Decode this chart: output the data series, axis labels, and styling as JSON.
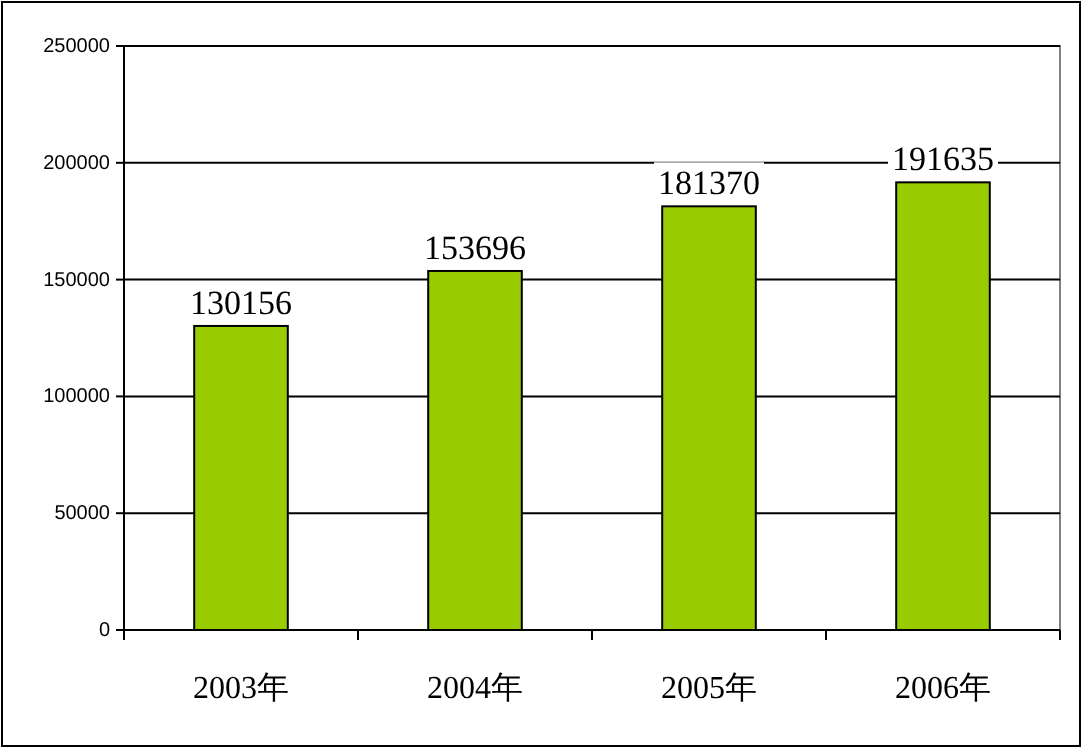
{
  "chart_data": {
    "type": "bar",
    "categories": [
      "2003年",
      "2004年",
      "2005年",
      "2006年"
    ],
    "values": [
      130156,
      153696,
      181370,
      191635
    ],
    "color": "#99cc00",
    "ylim": [
      0,
      250000
    ],
    "yticks": [
      0,
      50000,
      100000,
      150000,
      200000,
      250000
    ],
    "grid": "y",
    "data_labels": true
  }
}
